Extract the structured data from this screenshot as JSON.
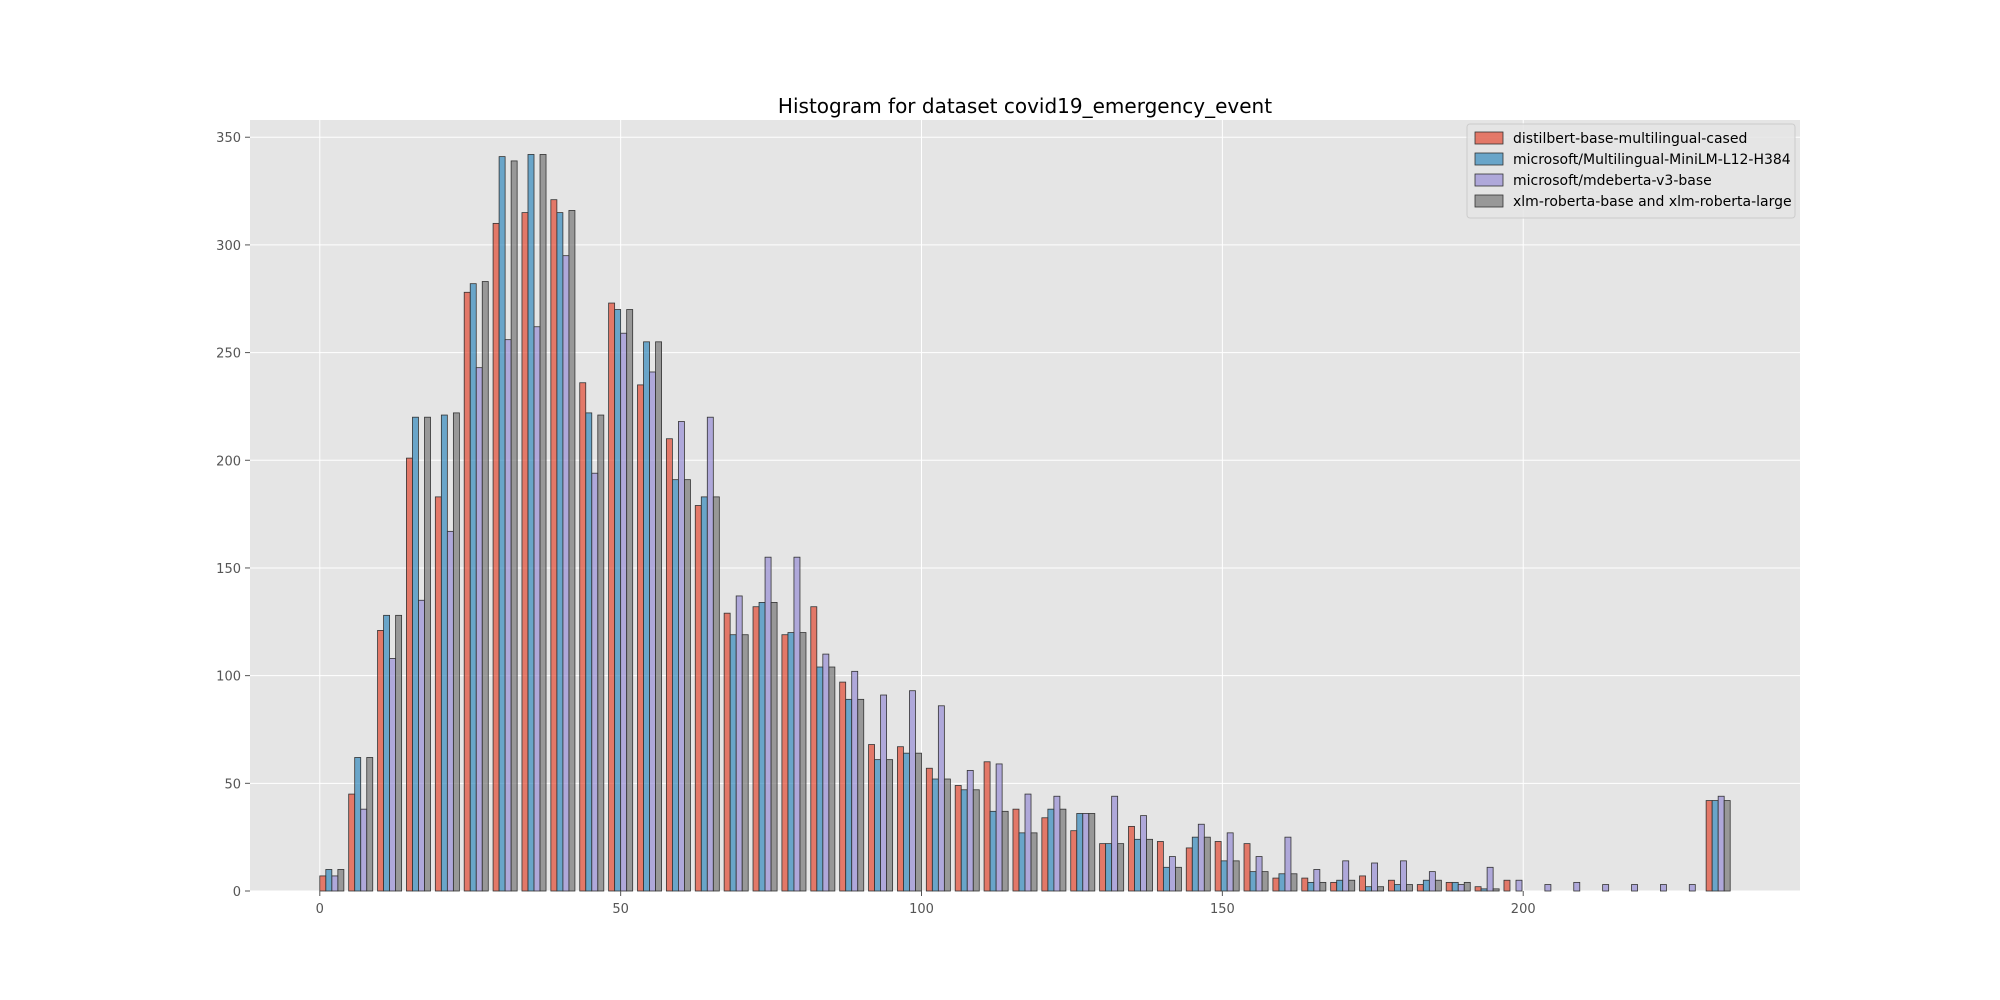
{
  "chart_data": {
    "type": "bar",
    "title": "Histogram for dataset covid19_emergency_event",
    "xlabel": "",
    "ylabel": "",
    "xlim": [
      -11.6,
      246
    ],
    "ylim": [
      0,
      358
    ],
    "x_ticks": [
      0,
      50,
      100,
      150,
      200
    ],
    "y_ticks": [
      0,
      50,
      100,
      150,
      200,
      250,
      300,
      350
    ],
    "bin_width": 4.8,
    "bar_group_width": 4.0,
    "grid": true,
    "legend_placement": "top-right",
    "bin_starts": [
      0,
      4.8,
      9.6,
      14.4,
      19.2,
      24,
      28.8,
      33.6,
      38.4,
      43.2,
      48,
      52.8,
      57.6,
      62.4,
      67.2,
      72,
      76.8,
      81.6,
      86.4,
      91.2,
      96,
      100.8,
      105.6,
      110.4,
      115.2,
      120,
      124.8,
      129.6,
      134.4,
      139.2,
      144,
      148.8,
      153.6,
      158.4,
      163.2,
      168,
      172.8,
      177.6,
      182.4,
      187.2,
      192,
      196.8,
      201.6,
      206.4,
      211.2,
      216,
      220.8,
      225.6,
      230.4
    ],
    "series": [
      {
        "name": "distilbert-base-multilingual-cased",
        "color": "#E24A33",
        "values": [
          7,
          45,
          121,
          201,
          183,
          278,
          310,
          315,
          321,
          236,
          273,
          235,
          210,
          179,
          129,
          132,
          119,
          132,
          97,
          68,
          67,
          57,
          49,
          60,
          38,
          34,
          28,
          22,
          30,
          23,
          20,
          23,
          22,
          6,
          6,
          4,
          7,
          5,
          3,
          4,
          2,
          5,
          0,
          0,
          0,
          0,
          0,
          0,
          42
        ]
      },
      {
        "name": "microsoft/Multilingual-MiniLM-L12-H384",
        "color": "#348ABD",
        "values": [
          10,
          62,
          128,
          220,
          221,
          282,
          341,
          342,
          315,
          222,
          270,
          255,
          191,
          183,
          119,
          134,
          120,
          104,
          89,
          61,
          64,
          52,
          47,
          37,
          27,
          38,
          36,
          22,
          24,
          11,
          25,
          14,
          9,
          8,
          4,
          5,
          2,
          3,
          5,
          4,
          1,
          0,
          0,
          0,
          0,
          0,
          0,
          0,
          42
        ]
      },
      {
        "name": "microsoft/mdeberta-v3-base",
        "color": "#988ED5",
        "values": [
          7,
          38,
          108,
          135,
          167,
          243,
          256,
          262,
          295,
          194,
          259,
          241,
          218,
          220,
          137,
          155,
          155,
          110,
          102,
          91,
          93,
          86,
          56,
          59,
          45,
          44,
          36,
          44,
          35,
          16,
          31,
          27,
          16,
          25,
          10,
          14,
          13,
          14,
          9,
          3,
          11,
          5,
          3,
          4,
          3,
          3,
          3,
          3,
          44
        ]
      },
      {
        "name": "xlm-roberta-base and xlm-roberta-large",
        "color": "#777777",
        "values": [
          10,
          62,
          128,
          220,
          222,
          283,
          339,
          342,
          316,
          221,
          270,
          255,
          191,
          183,
          119,
          134,
          120,
          104,
          89,
          61,
          64,
          52,
          47,
          37,
          27,
          38,
          36,
          22,
          24,
          11,
          25,
          14,
          9,
          8,
          4,
          5,
          2,
          3,
          5,
          4,
          1,
          0,
          0,
          0,
          0,
          0,
          0,
          0,
          42
        ]
      }
    ]
  }
}
